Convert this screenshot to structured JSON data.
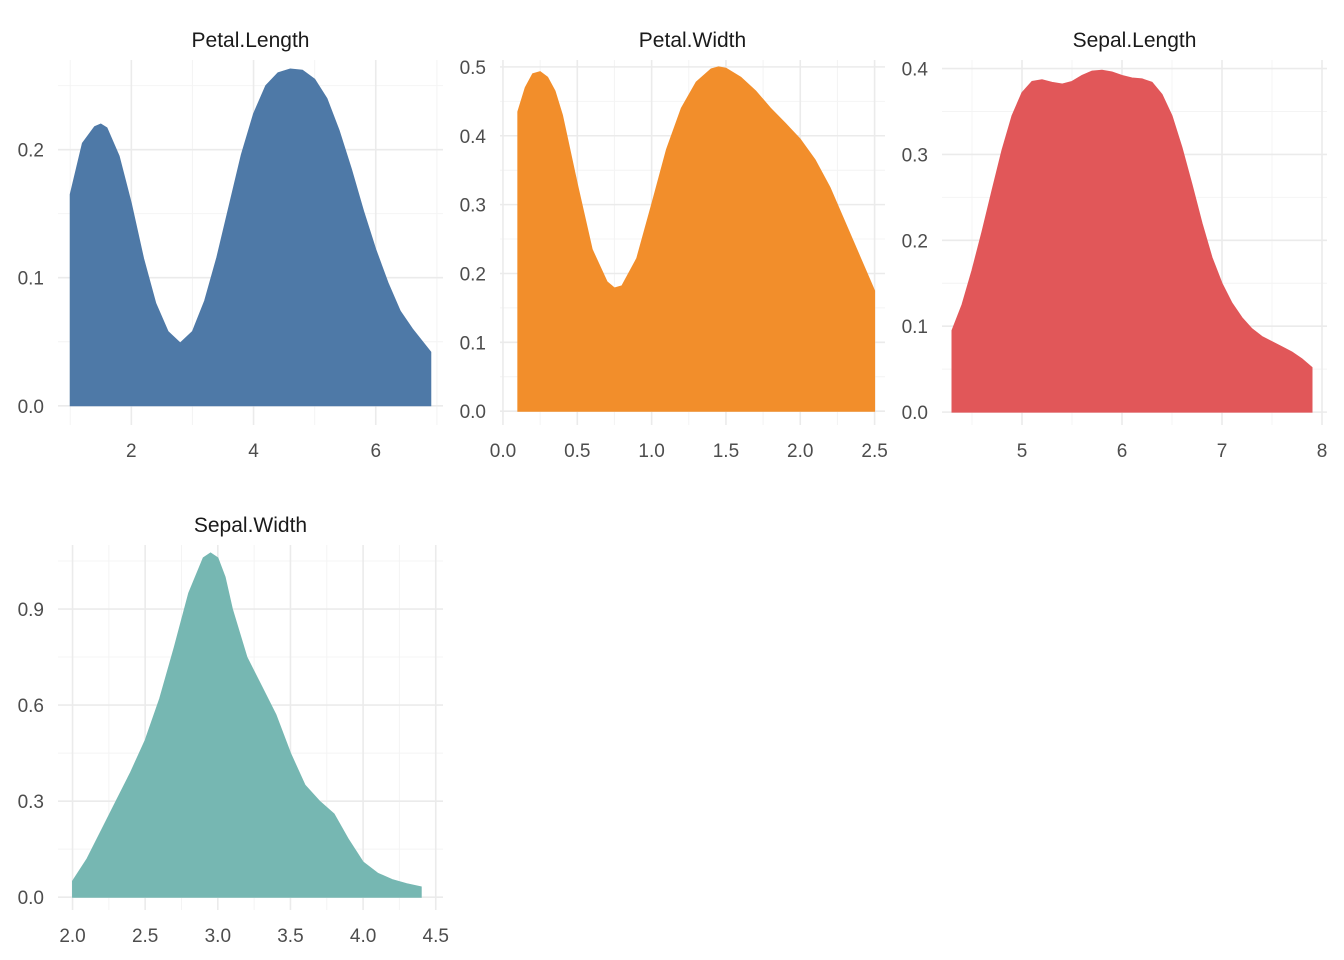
{
  "chart_data": [
    {
      "type": "area",
      "title": "Petal.Length",
      "color": "#4E79A7",
      "xlim": [
        0.8,
        7.1
      ],
      "ylim": [
        -0.015,
        0.27
      ],
      "x_ticks": [
        2,
        4,
        6
      ],
      "y_ticks": [
        0.0,
        0.1,
        0.2
      ],
      "x_tick_labels": [
        "2",
        "4",
        "6"
      ],
      "y_tick_labels": [
        "0.0",
        "0.1",
        "0.2"
      ],
      "x": [
        1.0,
        1.2,
        1.4,
        1.5,
        1.6,
        1.8,
        2.0,
        2.2,
        2.4,
        2.6,
        2.8,
        3.0,
        3.2,
        3.4,
        3.6,
        3.8,
        4.0,
        4.2,
        4.4,
        4.6,
        4.8,
        5.0,
        5.2,
        5.4,
        5.6,
        5.8,
        6.0,
        6.2,
        6.4,
        6.6,
        6.9
      ],
      "y": [
        0.165,
        0.205,
        0.218,
        0.22,
        0.217,
        0.195,
        0.158,
        0.115,
        0.08,
        0.058,
        0.049,
        0.058,
        0.082,
        0.116,
        0.156,
        0.196,
        0.228,
        0.25,
        0.26,
        0.263,
        0.262,
        0.255,
        0.24,
        0.215,
        0.185,
        0.152,
        0.122,
        0.096,
        0.074,
        0.06,
        0.042
      ]
    },
    {
      "type": "area",
      "title": "Petal.Width",
      "color": "#F28E2B",
      "xlim": [
        -0.02,
        2.57
      ],
      "ylim": [
        -0.02,
        0.51
      ],
      "x_ticks": [
        0.0,
        0.5,
        1.0,
        1.5,
        2.0,
        2.5
      ],
      "y_ticks": [
        0.0,
        0.1,
        0.2,
        0.3,
        0.4,
        0.5
      ],
      "x_tick_labels": [
        "0.0",
        "0.5",
        "1.0",
        "1.5",
        "2.0",
        "2.5"
      ],
      "y_tick_labels": [
        "0.0",
        "0.1",
        "0.2",
        "0.3",
        "0.4",
        "0.5"
      ],
      "x": [
        0.1,
        0.15,
        0.2,
        0.25,
        0.3,
        0.35,
        0.4,
        0.5,
        0.6,
        0.7,
        0.75,
        0.8,
        0.9,
        1.0,
        1.1,
        1.2,
        1.3,
        1.4,
        1.45,
        1.5,
        1.6,
        1.7,
        1.8,
        1.9,
        2.0,
        2.1,
        2.2,
        2.3,
        2.4,
        2.5
      ],
      "y": [
        0.435,
        0.47,
        0.49,
        0.493,
        0.485,
        0.465,
        0.43,
        0.33,
        0.235,
        0.188,
        0.179,
        0.182,
        0.222,
        0.3,
        0.38,
        0.44,
        0.478,
        0.497,
        0.5,
        0.498,
        0.485,
        0.465,
        0.44,
        0.418,
        0.395,
        0.365,
        0.325,
        0.275,
        0.225,
        0.175
      ]
    },
    {
      "type": "area",
      "title": "Sepal.Length",
      "color": "#E15759",
      "xlim": [
        4.2,
        8.05
      ],
      "ylim": [
        -0.015,
        0.41
      ],
      "x_ticks": [
        5,
        6,
        7,
        8
      ],
      "y_ticks": [
        0.0,
        0.1,
        0.2,
        0.3,
        0.4
      ],
      "x_tick_labels": [
        "5",
        "6",
        "7",
        "8"
      ],
      "y_tick_labels": [
        "0.0",
        "0.1",
        "0.2",
        "0.3",
        "0.4"
      ],
      "x": [
        4.3,
        4.4,
        4.5,
        4.6,
        4.7,
        4.8,
        4.9,
        5.0,
        5.1,
        5.2,
        5.3,
        5.4,
        5.5,
        5.6,
        5.7,
        5.8,
        5.9,
        6.0,
        6.1,
        6.2,
        6.3,
        6.4,
        6.5,
        6.6,
        6.7,
        6.8,
        6.9,
        7.0,
        7.1,
        7.2,
        7.3,
        7.4,
        7.5,
        7.6,
        7.7,
        7.8,
        7.9
      ],
      "y": [
        0.095,
        0.125,
        0.165,
        0.21,
        0.258,
        0.305,
        0.345,
        0.372,
        0.385,
        0.387,
        0.384,
        0.382,
        0.385,
        0.392,
        0.397,
        0.398,
        0.396,
        0.392,
        0.389,
        0.388,
        0.384,
        0.37,
        0.345,
        0.308,
        0.265,
        0.22,
        0.18,
        0.15,
        0.127,
        0.11,
        0.097,
        0.088,
        0.082,
        0.076,
        0.07,
        0.062,
        0.052
      ]
    },
    {
      "type": "area",
      "title": "Sepal.Width",
      "color": "#76B7B2",
      "xlim": [
        1.9,
        4.55
      ],
      "ylim": [
        -0.04,
        1.1
      ],
      "x_ticks": [
        2.0,
        2.5,
        3.0,
        3.5,
        4.0,
        4.5
      ],
      "y_ticks": [
        0.0,
        0.3,
        0.6,
        0.9
      ],
      "x_tick_labels": [
        "2.0",
        "2.5",
        "3.0",
        "3.5",
        "4.0",
        "4.5"
      ],
      "y_tick_labels": [
        "0.0",
        "0.3",
        "0.6",
        "0.9"
      ],
      "x": [
        2.0,
        2.1,
        2.2,
        2.3,
        2.4,
        2.5,
        2.6,
        2.7,
        2.8,
        2.9,
        2.95,
        3.0,
        3.05,
        3.1,
        3.2,
        3.3,
        3.4,
        3.5,
        3.6,
        3.7,
        3.8,
        3.9,
        4.0,
        4.1,
        4.2,
        4.3,
        4.4
      ],
      "y": [
        0.05,
        0.12,
        0.21,
        0.3,
        0.39,
        0.49,
        0.62,
        0.78,
        0.95,
        1.06,
        1.075,
        1.06,
        1.0,
        0.9,
        0.75,
        0.66,
        0.57,
        0.45,
        0.35,
        0.3,
        0.26,
        0.18,
        0.11,
        0.075,
        0.055,
        0.042,
        0.032
      ]
    }
  ]
}
